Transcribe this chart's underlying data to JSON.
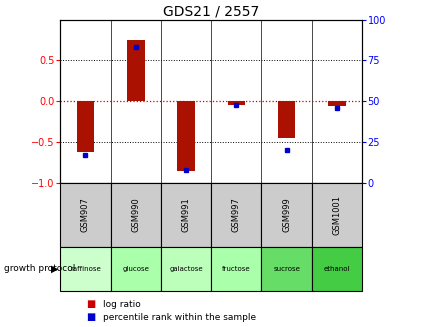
{
  "title": "GDS21 / 2557",
  "samples": [
    "GSM907",
    "GSM990",
    "GSM991",
    "GSM997",
    "GSM999",
    "GSM1001"
  ],
  "protocols": [
    "raffinose",
    "glucose",
    "galactose",
    "fructose",
    "sucrose",
    "ethanol"
  ],
  "log_ratios": [
    -0.62,
    0.75,
    -0.85,
    -0.04,
    -0.45,
    -0.06
  ],
  "percentile_ranks": [
    17,
    83,
    8,
    48,
    20,
    46
  ],
  "protocol_colors": [
    "#ccffcc",
    "#aaffaa",
    "#bbffbb",
    "#aaffaa",
    "#66dd66",
    "#44cc44"
  ],
  "bar_color": "#aa1100",
  "dot_color": "#0000cc",
  "ylim_left": [
    -1,
    1
  ],
  "ylim_right": [
    0,
    100
  ],
  "yticks_left": [
    -1,
    -0.5,
    0,
    0.5
  ],
  "yticks_right": [
    0,
    25,
    50,
    75,
    100
  ],
  "zero_line_color": "#cc0000",
  "background_color": "#ffffff",
  "legend_log_ratio_color": "#cc0000",
  "legend_percentile_color": "#0000cc",
  "bar_width": 0.35,
  "title_fontsize": 10,
  "tick_fontsize": 7,
  "gsm_row_color": "#cccccc"
}
